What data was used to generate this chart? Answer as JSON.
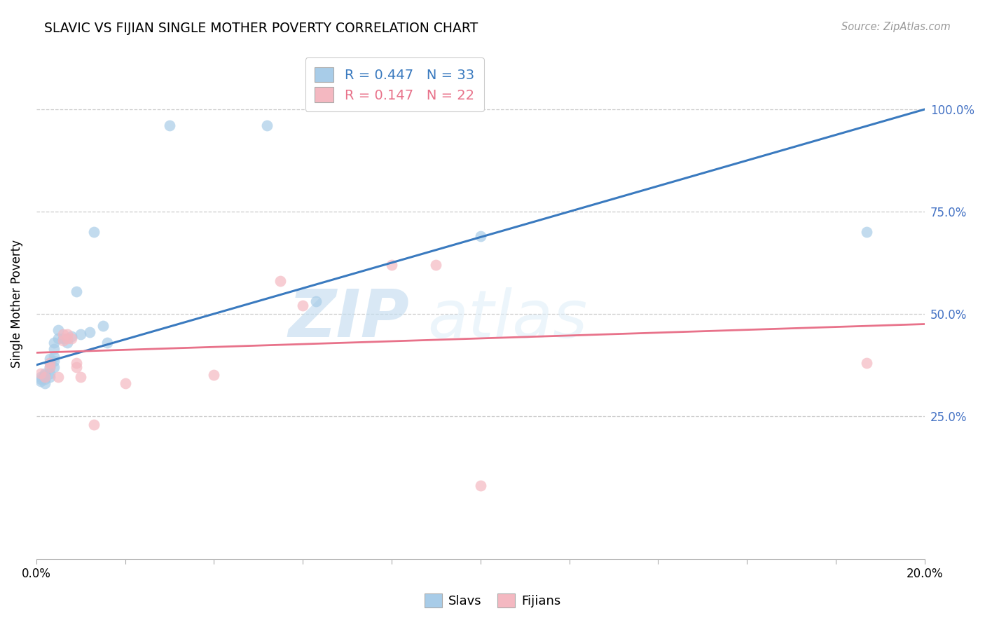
{
  "title": "SLAVIC VS FIJIAN SINGLE MOTHER POVERTY CORRELATION CHART",
  "source": "Source: ZipAtlas.com",
  "ylabel": "Single Mother Poverty",
  "xlim": [
    0.0,
    0.2
  ],
  "ylim": [
    -0.1,
    1.15
  ],
  "ytick_positions": [
    0.25,
    0.5,
    0.75,
    1.0
  ],
  "ytick_labels": [
    "25.0%",
    "50.0%",
    "75.0%",
    "100.0%"
  ],
  "xtick_positions": [
    0.0,
    0.02,
    0.04,
    0.06,
    0.08,
    0.1,
    0.12,
    0.14,
    0.16,
    0.18,
    0.2
  ],
  "xtick_labels": [
    "0.0%",
    "",
    "",
    "",
    "",
    "",
    "",
    "",
    "",
    "",
    "20.0%"
  ],
  "slavs_R": 0.447,
  "slavs_N": 33,
  "fijians_R": 0.147,
  "fijians_N": 22,
  "slavs_color": "#a8cce8",
  "fijians_color": "#f4b8c1",
  "slavs_line_color": "#3a7abf",
  "fijians_line_color": "#e8728a",
  "slavs_x": [
    0.001,
    0.001,
    0.001,
    0.002,
    0.002,
    0.002,
    0.002,
    0.003,
    0.003,
    0.003,
    0.003,
    0.003,
    0.004,
    0.004,
    0.004,
    0.004,
    0.004,
    0.005,
    0.005,
    0.006,
    0.007,
    0.008,
    0.009,
    0.01,
    0.012,
    0.013,
    0.015,
    0.016,
    0.03,
    0.052,
    0.063,
    0.1,
    0.187
  ],
  "slavs_y": [
    0.335,
    0.34,
    0.345,
    0.33,
    0.34,
    0.35,
    0.355,
    0.345,
    0.355,
    0.37,
    0.38,
    0.39,
    0.37,
    0.385,
    0.395,
    0.415,
    0.43,
    0.44,
    0.46,
    0.44,
    0.43,
    0.445,
    0.555,
    0.45,
    0.455,
    0.7,
    0.47,
    0.43,
    0.96,
    0.96,
    0.53,
    0.69,
    0.7
  ],
  "fijians_x": [
    0.001,
    0.002,
    0.003,
    0.003,
    0.005,
    0.006,
    0.006,
    0.007,
    0.007,
    0.008,
    0.009,
    0.009,
    0.01,
    0.013,
    0.02,
    0.04,
    0.055,
    0.06,
    0.08,
    0.09,
    0.1,
    0.187
  ],
  "fijians_y": [
    0.355,
    0.345,
    0.37,
    0.38,
    0.345,
    0.435,
    0.45,
    0.44,
    0.45,
    0.44,
    0.37,
    0.38,
    0.345,
    0.23,
    0.33,
    0.35,
    0.58,
    0.52,
    0.62,
    0.62,
    0.08,
    0.38
  ],
  "slavs_line_x0": 0.0,
  "slavs_line_y0": 0.375,
  "slavs_line_x1": 0.2,
  "slavs_line_y1": 1.0,
  "fijians_line_x0": 0.0,
  "fijians_line_y0": 0.405,
  "fijians_line_x1": 0.2,
  "fijians_line_y1": 0.475,
  "watermark_zip": "ZIP",
  "watermark_atlas": "atlas",
  "grid_color": "#cccccc",
  "right_axis_color": "#4472c4"
}
